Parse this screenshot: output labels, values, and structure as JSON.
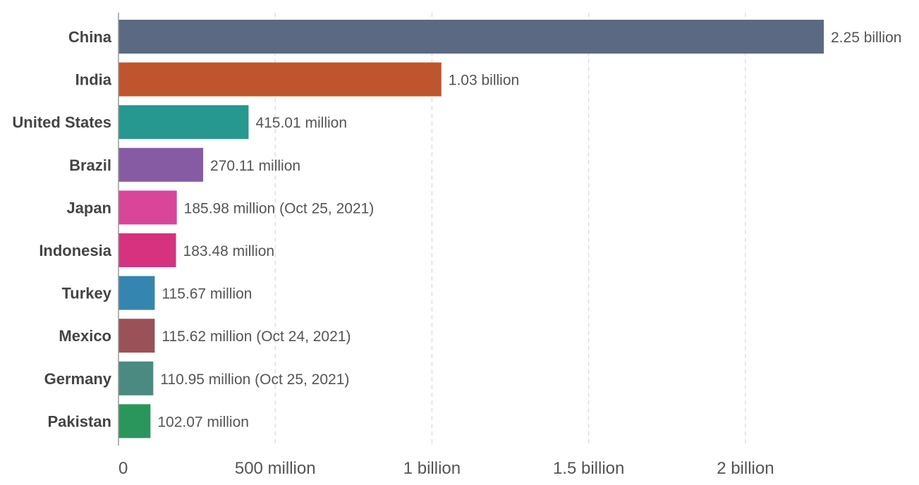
{
  "chart_data": {
    "type": "bar",
    "orientation": "horizontal",
    "categories": [
      "China",
      "India",
      "United States",
      "Brazil",
      "Japan",
      "Indonesia",
      "Turkey",
      "Mexico",
      "Germany",
      "Pakistan"
    ],
    "values": [
      2250000000,
      1030000000,
      415010000,
      270110000,
      185980000,
      183480000,
      115670000,
      115620000,
      110950000,
      102070000
    ],
    "value_labels": [
      "2.25 billion",
      "1.03 billion",
      "415.01 million",
      "270.11 million",
      "185.98 million (Oct 25, 2021)",
      "183.48 million",
      "115.67 million",
      "115.62 million (Oct 24, 2021)",
      "110.95 million (Oct 25, 2021)",
      "102.07 million"
    ],
    "colors": [
      "#5b6a82",
      "#bf552f",
      "#26988f",
      "#865ba4",
      "#d84599",
      "#d6327f",
      "#3486b0",
      "#9a5157",
      "#4b8a80",
      "#2b965c"
    ],
    "xlim": [
      0,
      2250000000
    ],
    "xticks": [
      0,
      500000000,
      1000000000,
      1500000000,
      2000000000
    ],
    "xtick_labels": [
      "0",
      "500 million",
      "1 billion",
      "1.5 billion",
      "2 billion"
    ],
    "grid": true,
    "title": "",
    "xlabel": "",
    "ylabel": ""
  }
}
